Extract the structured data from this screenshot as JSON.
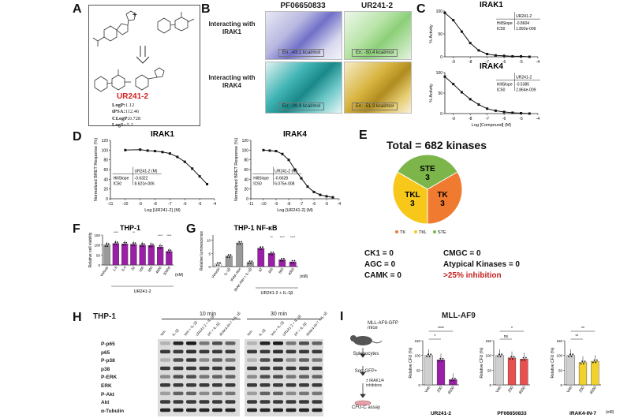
{
  "panel_letters": {
    "a": "A",
    "b": "B",
    "c": "C",
    "d": "D",
    "e": "E",
    "f": "F",
    "g": "G",
    "h": "H",
    "i": "I"
  },
  "panel_a": {
    "compound_name": "UR241-2",
    "plus": "+",
    "props": {
      "logp_label": "LogP:",
      "logp_value": "1.12",
      "tpsa_label": "tPSA:",
      "tpsa_value": "112.46",
      "clogp_label": "CLogP:",
      "clogp_value": "0.728",
      "logs_label": "LogS:",
      "logs_value": "-5.2"
    }
  },
  "panel_b": {
    "col1": "PF06650833",
    "col2": "UR241-2",
    "row1": "Interacting with IRAK1",
    "row2": "Interacting with IRAK4",
    "energies": {
      "e11": "En: -43.1 kcal/mol",
      "e12": "En: -50.4 kcal/mol",
      "e21": "En: -39.9 kcal/mol",
      "e22": "En: -51.3 kcal/mol"
    },
    "colors": {
      "green_tag": "#8fd07a",
      "yellow_tag": "#f5e84a"
    }
  },
  "panel_c": {
    "charts": [
      {
        "title": "IRAK1",
        "ylabel": "% Activity",
        "xlabel": "",
        "legend_header": "UR241-2",
        "hillslope_label": "HillSlope",
        "hillslope_value": "-0.8604",
        "ic50_label": "IC50",
        "ic50_value": "1.892e-009"
      },
      {
        "title": "IRAK4",
        "ylabel": "% Activity",
        "xlabel": "Log [Compound] (M)",
        "legend_header": "UR241-2",
        "hillslope_label": "HillSlope",
        "hillslope_value": "-0.5385",
        "ic50_label": "IC50",
        "ic50_value": "2.864e-009"
      }
    ],
    "yticks": [
      "0",
      "50",
      "100"
    ],
    "xticks": [
      "-9",
      "-8",
      "-7",
      "-6",
      "-5",
      "-4"
    ]
  },
  "panel_d": {
    "charts": [
      {
        "title": "IRAK1",
        "ylabel": "Normalized BRET Response (%)",
        "xlabel": "Log [UR241-2] (M)",
        "legend_header": "UR241-2 (M)",
        "hillslope_label": "HillSlope",
        "hillslope_value": "-0.6322",
        "ic50_label": "IC50",
        "ic50_value": "8.621e-006"
      },
      {
        "title": "IRAK4",
        "ylabel": "Normalized BRET Response (%)",
        "xlabel": "Log [UR241-2] (M)",
        "legend_header": "UR241-2 (M)",
        "hillslope_label": "HillSlope",
        "hillslope_value": "-0.6628",
        "ic50_label": "IC50",
        "ic50_value": "6.075e-008"
      }
    ],
    "yticks": [
      "0",
      "20",
      "40",
      "60",
      "80",
      "100",
      "120"
    ],
    "xticks": [
      "-11",
      "-10",
      "-9",
      "-8",
      "-7",
      "-6",
      "-5",
      "-4"
    ]
  },
  "panel_e": {
    "total": "Total = 682 kinases",
    "legend": [
      "TK",
      "TKL",
      "STE"
    ],
    "colors": {
      "TK": "#f07a30",
      "TKL": "#f7c71a",
      "STE": "#7cb54a"
    },
    "stats": {
      "ck1": "CK1 = 0",
      "agc": "AGC = 0",
      "camk": "CAMK = 0",
      "cmgc": "CMGC = 0",
      "atypical": "Atypical Kinases = 0",
      "threshold": ">25% inhibition"
    }
  },
  "panel_f": {
    "title": "THP-1",
    "ylabel": "Relative cell viability",
    "group_label": "UR241-2",
    "unit": "(nM)",
    "sig": [
      "****",
      "**",
      "****",
      "****"
    ],
    "yticks": [
      "0",
      "50",
      "100",
      "150"
    ]
  },
  "panel_g": {
    "title": "THP-1 NF-κB",
    "ylabel": "Relative luminescence",
    "group_label": "UR241-2 + IL-1β",
    "unit": "(nM)",
    "sig": [
      "**",
      "****",
      "****"
    ],
    "yticks": [
      "0",
      "5",
      "10"
    ]
  },
  "panel_h": {
    "cell_line": "THP-1",
    "time1": "10 min",
    "time2": "30 min",
    "lanes": [
      "Veh",
      "IL-1β",
      "Veh + IL-1β",
      "UR241-2 + IL-1β",
      "PF + IL-1β",
      "IRAK4-IN-7 + IL-1β"
    ],
    "proteins": [
      "P-p65",
      "p65",
      "P-p38",
      "p38",
      "P-ERK",
      "ERK",
      "P-Akt",
      "Akt",
      "α-Tubulin"
    ]
  },
  "panel_i": {
    "title": "MLL-AF9",
    "flow": {
      "mice": "MLL-AF9-GFP mice",
      "spleno": "Splenocytes",
      "sort": "Sort GFP+",
      "inhib": "± IRAK1/4 inhibitors",
      "cfu": "CFU-C assay"
    },
    "ylabel": "Relative CFU (%)",
    "unit": "(nM)",
    "yticks": [
      "0",
      "50",
      "100",
      "150"
    ]
  },
  "chart_data": [
    {
      "type": "line",
      "title": "IRAK1",
      "ylabel": "% Activity",
      "xlabel": "",
      "x": [
        -9.5,
        -9.0,
        -8.5,
        -8.0,
        -7.5,
        -7.0,
        -6.5,
        -6.0,
        -5.5,
        -5.0,
        -4.5
      ],
      "series": [
        {
          "values": [
            96,
            80,
            55,
            30,
            14,
            6,
            3,
            2,
            1,
            1,
            0
          ]
        }
      ],
      "ylim": [
        0,
        100
      ],
      "xlim": [
        -9.5,
        -4
      ]
    },
    {
      "type": "line",
      "title": "IRAK4",
      "ylabel": "% Activity",
      "xlabel": "Log [Compound] (M)",
      "x": [
        -9.5,
        -9.0,
        -8.5,
        -8.0,
        -7.5,
        -7.0,
        -6.5,
        -6.0,
        -5.5,
        -5.0,
        -4.5
      ],
      "series": [
        {
          "values": [
            90,
            72,
            52,
            35,
            22,
            12,
            7,
            4,
            2,
            1,
            0
          ]
        }
      ],
      "ylim": [
        0,
        100
      ],
      "xlim": [
        -9.5,
        -4
      ]
    },
    {
      "type": "line",
      "title": "IRAK1",
      "ylabel": "Normalized BRET Response (%)",
      "xlabel": "Log [UR241-2] (M)",
      "x": [
        -10,
        -9,
        -8.5,
        -8,
        -7.5,
        -7,
        -6.5,
        -6,
        -5.5,
        -5,
        -4.5
      ],
      "series": [
        {
          "values": [
            100,
            101,
            99,
            98,
            96,
            93,
            86,
            76,
            62,
            46,
            30
          ]
        }
      ],
      "ylim": [
        0,
        120
      ],
      "xlim": [
        -11,
        -4
      ]
    },
    {
      "type": "line",
      "title": "IRAK4",
      "ylabel": "Normalized BRET Response (%)",
      "xlabel": "Log [UR241-2] (M)",
      "x": [
        -10,
        -9.5,
        -9,
        -8.5,
        -8,
        -7.5,
        -7,
        -6.5,
        -6,
        -5.5,
        -5,
        -4.5
      ],
      "series": [
        {
          "values": [
            100,
            99,
            98,
            92,
            80,
            60,
            42,
            25,
            14,
            8,
            5,
            3
          ]
        }
      ],
      "ylim": [
        0,
        120
      ],
      "xlim": [
        -11,
        -4
      ]
    },
    {
      "type": "pie",
      "title": "Total = 682 kinases",
      "categories": [
        "TK",
        "TKL",
        "STE"
      ],
      "values": [
        3,
        3,
        3
      ]
    },
    {
      "type": "bar",
      "title": "THP-1",
      "ylabel": "Relative cell viability",
      "categories": [
        "Vehicle",
        "1.6",
        "6.4",
        "32",
        "160",
        "800",
        "4000",
        "20000"
      ],
      "values": [
        100,
        108,
        106,
        104,
        100,
        98,
        90,
        68
      ],
      "ylim": [
        0,
        150
      ]
    },
    {
      "type": "bar",
      "title": "THP-1 NF-κB",
      "ylabel": "Relative luminescence",
      "categories": [
        "Vehicle",
        "IL-1β",
        "IRAK-INH",
        "IRAK-INH + IL-1β",
        "32",
        "160",
        "800",
        "4000"
      ],
      "values": [
        1.0,
        4.0,
        9.0,
        1.6,
        7.0,
        5.0,
        2.6,
        1.8
      ],
      "ylim": [
        0,
        12
      ]
    },
    {
      "type": "bar",
      "title": "UR241-2",
      "ylabel": "Relative CFU (%)",
      "categories": [
        "Veh",
        "200",
        "4000"
      ],
      "values": [
        100,
        85,
        18
      ],
      "sig": [
        "*",
        "****"
      ],
      "ylim": [
        0,
        150
      ]
    },
    {
      "type": "bar",
      "title": "PF06650833",
      "ylabel": "Relative CFU (%)",
      "categories": [
        "Veh",
        "200",
        "4000"
      ],
      "values": [
        100,
        92,
        88
      ],
      "sig": [
        "ns",
        "*"
      ],
      "ylim": [
        0,
        150
      ]
    },
    {
      "type": "bar",
      "title": "IRAK4-IN-7",
      "ylabel": "Relative CFU (%)",
      "categories": [
        "Veh",
        "200",
        "4000"
      ],
      "values": [
        100,
        76,
        80
      ],
      "sig": [
        "**",
        "**"
      ],
      "ylim": [
        0,
        150
      ]
    }
  ]
}
